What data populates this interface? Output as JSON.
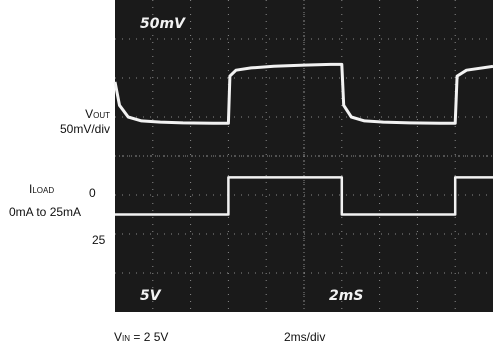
{
  "labels": {
    "vout_main": "V",
    "vout_sub": "OUT",
    "vout_scale": "50mV/div",
    "iload_main": "I",
    "iload_sub": "LOAD",
    "iload_range": "0mA to 25mA",
    "iload_zero": "0",
    "iload_25": "25",
    "vin_main": "V",
    "vin_sub": "IN",
    "vin_value": " = 2 5V",
    "timebase": "2ms/div"
  },
  "screen": {
    "ch1_scale": "50mV",
    "ch2_scale": "5V",
    "time_scale": "2mS",
    "background": "#1a1a1a",
    "trace_color": "#f2f2f2",
    "grid_color": "#8a8a8a"
  },
  "chart_data": {
    "type": "line",
    "xlabel": "2ms/div",
    "x_unit": "div",
    "y_unit": "div",
    "xlim": [
      0,
      10
    ],
    "ylim": [
      0,
      8
    ],
    "grid": true,
    "series": [
      {
        "name": "VOUT",
        "x": [
          0,
          0.12,
          0.35,
          0.7,
          1.2,
          1.8,
          2.6,
          2.95,
          3.0,
          3.04,
          3.2,
          3.6,
          4.2,
          5.0,
          5.7,
          5.95,
          6.0,
          6.05,
          6.25,
          6.6,
          7.1,
          7.8,
          8.6,
          8.95,
          9.0,
          9.05,
          9.3,
          10
        ],
        "y": [
          5.9,
          5.3,
          5.0,
          4.9,
          4.87,
          4.85,
          4.84,
          4.84,
          4.84,
          6.05,
          6.2,
          6.26,
          6.3,
          6.33,
          6.35,
          6.35,
          6.35,
          5.3,
          5.0,
          4.9,
          4.87,
          4.85,
          4.84,
          4.84,
          4.84,
          6.05,
          6.2,
          6.3
        ]
      },
      {
        "name": "ILOAD",
        "x": [
          0,
          3.0,
          3.0,
          6.0,
          6.0,
          9.0,
          9.0,
          10
        ],
        "y": [
          2.5,
          2.5,
          3.45,
          3.45,
          2.5,
          2.5,
          3.45,
          3.45
        ]
      }
    ]
  }
}
